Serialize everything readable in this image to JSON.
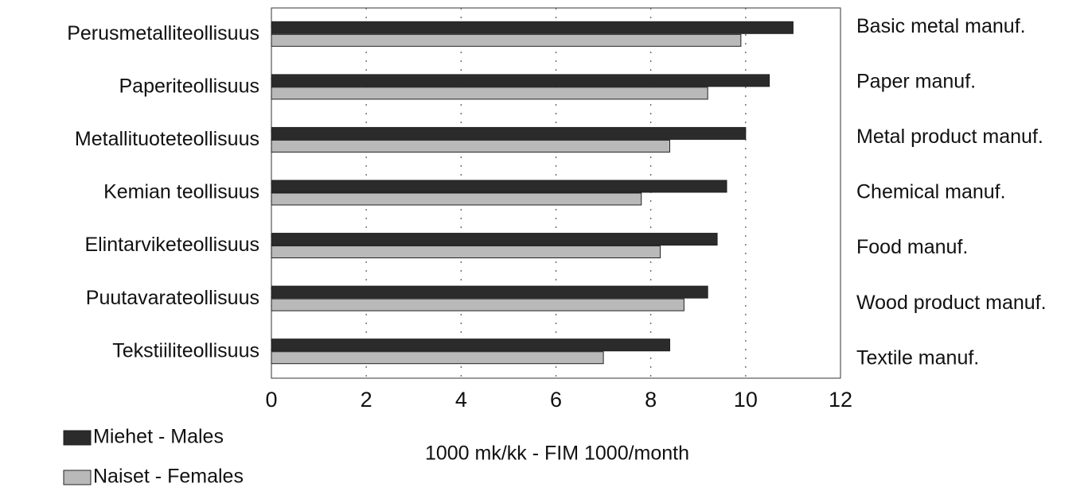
{
  "chart_data": {
    "type": "hbar",
    "categories": [
      "Perusmetalliteollisuus",
      "Paperiteollisuus",
      "Metallituoteteollisuus",
      "Kemian teollisuus",
      "Elintarviketeollisuus",
      "Puutavarateollisuus",
      "Tekstiiliteollisuus"
    ],
    "secondary_categories": [
      "Basic metal manuf.",
      "Paper manuf.",
      "Metal product manuf.",
      "Chemical manuf.",
      "Food manuf.",
      "Wood product manuf.",
      "Textile manuf."
    ],
    "series": [
      {
        "name": "Miehet - Males",
        "color": "#2b2b2b",
        "values": [
          11.0,
          10.5,
          10.0,
          9.6,
          9.4,
          9.2,
          8.4
        ]
      },
      {
        "name": "Naiset - Females",
        "color": "#b9b9b9",
        "values": [
          9.9,
          9.2,
          8.4,
          7.8,
          8.2,
          8.7,
          7.0
        ]
      }
    ],
    "x_label": "1000 mk/kk - FIM 1000/month",
    "xlim": [
      0,
      12
    ],
    "xticks": [
      0,
      2,
      4,
      6,
      8,
      10,
      12
    ],
    "grid": true
  }
}
